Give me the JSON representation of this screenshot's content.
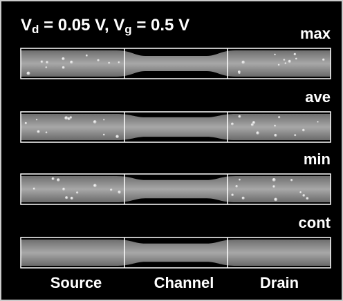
{
  "title": [
    "V",
    "d",
    " = 0.05 V, V",
    "g",
    " = 0.5 V"
  ],
  "panels": [
    {
      "label": "max"
    },
    {
      "label": "ave"
    },
    {
      "label": "min"
    },
    {
      "label": "cont"
    }
  ],
  "regions": [
    "Source",
    "Channel",
    "Drain"
  ]
}
